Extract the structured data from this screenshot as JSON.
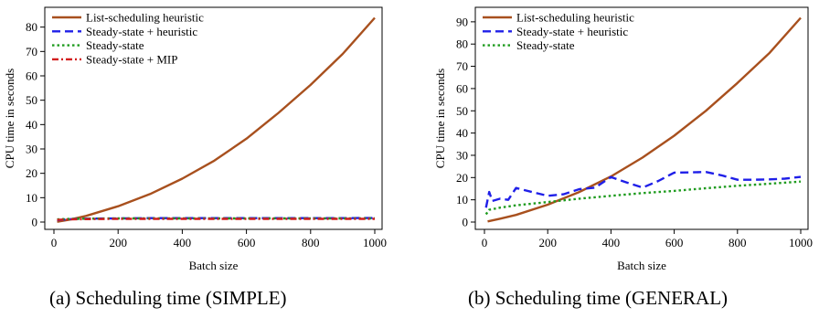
{
  "figure": {
    "captions": [
      "(a)  Scheduling time (SIMPLE)",
      "(b)  Scheduling time (GENERAL)"
    ]
  },
  "colors": {
    "list_scheduling": "#a8501e",
    "steady_heuristic": "#1f1fe8",
    "steady_state": "#1e9b1e",
    "steady_mip": "#d21e1e"
  },
  "chart_data": [
    {
      "type": "line",
      "title": "",
      "xlabel": "Batch size",
      "ylabel": "CPU time in seconds",
      "xlim": [
        0,
        1000
      ],
      "ylim": [
        0,
        84
      ],
      "xticks": [
        0,
        200,
        400,
        600,
        800,
        1000
      ],
      "yticks": [
        0,
        10,
        20,
        30,
        40,
        50,
        60,
        70,
        80
      ],
      "grid": false,
      "legend_position": "top-left",
      "series": [
        {
          "name": "List-scheduling heuristic",
          "style": "solid",
          "x": [
            10,
            50,
            100,
            200,
            300,
            400,
            500,
            600,
            700,
            800,
            900,
            1000
          ],
          "y": [
            0.1,
            1.0,
            2.5,
            6.5,
            11.5,
            17.8,
            25.2,
            34.2,
            44.8,
            56.3,
            69.0,
            83.8
          ]
        },
        {
          "name": "Steady-state + heuristic",
          "style": "dashed",
          "x": [
            10,
            50,
            100,
            200,
            300,
            400,
            500,
            600,
            700,
            800,
            900,
            1000
          ],
          "y": [
            0.8,
            1.2,
            1.4,
            1.5,
            1.6,
            1.6,
            1.6,
            1.6,
            1.6,
            1.6,
            1.6,
            1.7
          ]
        },
        {
          "name": "Steady-state",
          "style": "dotted",
          "x": [
            10,
            50,
            100,
            200,
            300,
            400,
            500,
            600,
            700,
            800,
            900,
            1000
          ],
          "y": [
            1.1,
            1.3,
            1.4,
            1.5,
            1.5,
            1.5,
            1.5,
            1.5,
            1.5,
            1.5,
            1.5,
            1.5
          ]
        },
        {
          "name": "Steady-state + MIP",
          "style": "dashdot",
          "x": [
            10,
            50,
            100,
            200,
            300,
            400,
            500,
            600,
            700,
            800,
            900,
            1000
          ],
          "y": [
            0.9,
            1.1,
            1.2,
            1.3,
            1.3,
            1.3,
            1.3,
            1.3,
            1.3,
            1.3,
            1.3,
            1.3
          ]
        }
      ]
    },
    {
      "type": "line",
      "title": "",
      "xlabel": "Batch size",
      "ylabel": "CPU time in seconds",
      "xlim": [
        0,
        1000
      ],
      "ylim": [
        0,
        92
      ],
      "xticks": [
        0,
        200,
        400,
        600,
        800,
        1000
      ],
      "yticks": [
        0,
        10,
        20,
        30,
        40,
        50,
        60,
        70,
        80,
        90
      ],
      "grid": false,
      "legend_position": "top-left",
      "series": [
        {
          "name": "List-scheduling heuristic",
          "style": "solid",
          "x": [
            10,
            50,
            100,
            200,
            300,
            400,
            500,
            600,
            700,
            800,
            900,
            1000
          ],
          "y": [
            0.3,
            1.5,
            3.2,
            7.8,
            13.5,
            20.5,
            29.0,
            38.8,
            50.0,
            62.5,
            75.8,
            91.8
          ]
        },
        {
          "name": "Steady-state + heuristic",
          "style": "dashed",
          "x": [
            5,
            15,
            25,
            50,
            75,
            100,
            150,
            200,
            250,
            300,
            350,
            400,
            450,
            500,
            550,
            600,
            650,
            700,
            750,
            800,
            850,
            900,
            950,
            1000
          ],
          "y": [
            6.5,
            13.5,
            9.5,
            10.5,
            10.0,
            15.3,
            13.5,
            11.8,
            12.5,
            14.8,
            15.5,
            20.2,
            17.8,
            15.5,
            18.5,
            22.2,
            22.3,
            22.5,
            21.0,
            19.0,
            19.0,
            19.2,
            19.5,
            20.3
          ]
        },
        {
          "name": "Steady-state",
          "style": "dotted",
          "x": [
            5,
            15,
            50,
            100,
            200,
            300,
            400,
            500,
            600,
            700,
            800,
            900,
            1000
          ],
          "y": [
            3.5,
            5.5,
            6.5,
            7.5,
            9.0,
            10.5,
            11.8,
            13.0,
            14.0,
            15.2,
            16.3,
            17.2,
            18.2
          ]
        }
      ]
    }
  ]
}
